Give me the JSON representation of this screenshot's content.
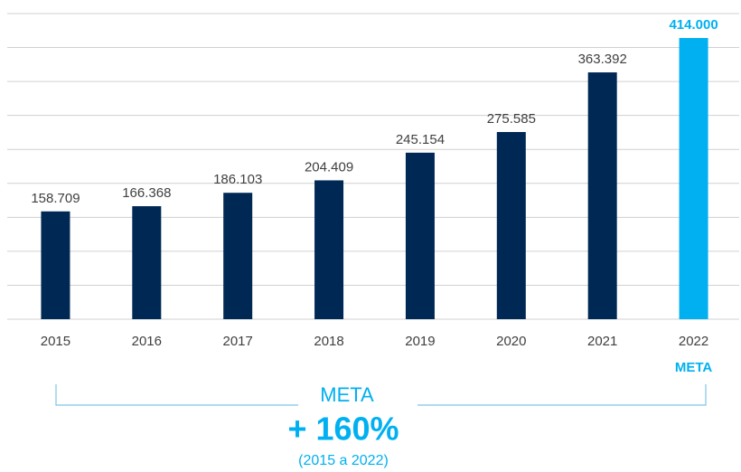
{
  "chart_data": {
    "type": "bar",
    "categories": [
      "2015",
      "2016",
      "2017",
      "2018",
      "2019",
      "2020",
      "2021",
      "2022"
    ],
    "values": [
      158709,
      166368,
      186103,
      204409,
      245154,
      275585,
      363392,
      414000
    ],
    "value_labels": [
      "158.709",
      "166.368",
      "186.103",
      "204.409",
      "245.154",
      "275.585",
      "363.392",
      "414.000"
    ],
    "colors": [
      "#002855",
      "#002855",
      "#002855",
      "#002855",
      "#002855",
      "#002855",
      "#002855",
      "#00b0f0"
    ],
    "highlight_label": "META",
    "ylim": [
      0,
      450000
    ],
    "yticks": [
      0,
      50000,
      100000,
      150000,
      200000,
      250000,
      300000,
      350000,
      400000,
      450000
    ],
    "grid": true,
    "annotation": {
      "title": "META",
      "value": "+ 160%",
      "period": "(2015 a 2022)"
    }
  }
}
